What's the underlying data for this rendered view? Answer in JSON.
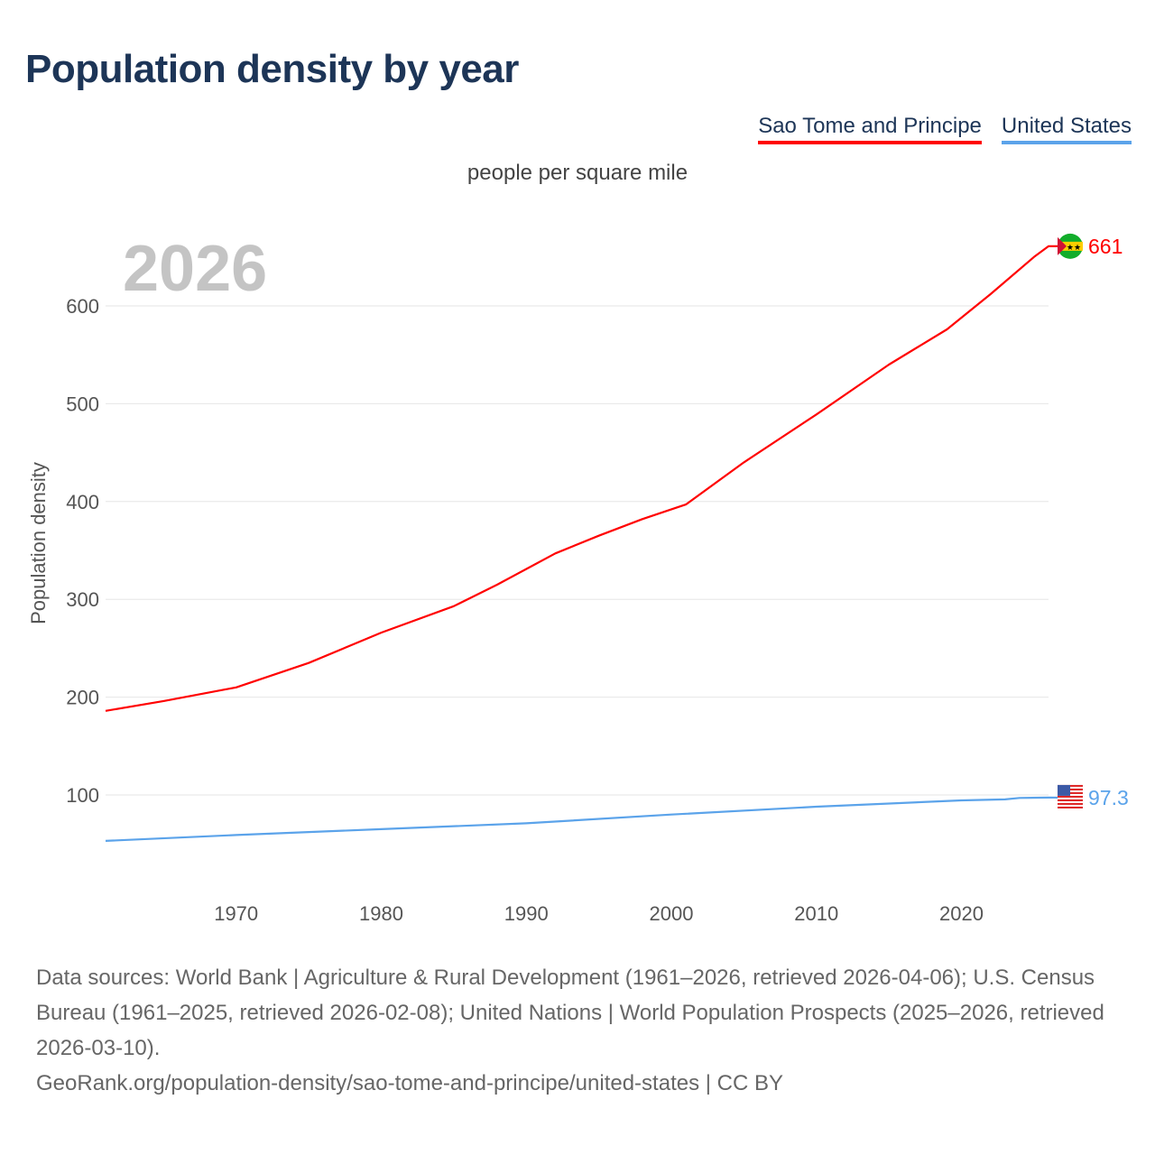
{
  "title": "Population density by year",
  "subtitle": "people per square mile",
  "year_label": "2026",
  "chart_data": {
    "type": "line",
    "ylabel": "Population density",
    "xlabel": "",
    "xlim": [
      1961,
      2026
    ],
    "ylim": [
      0,
      700
    ],
    "xticks": [
      1970,
      1980,
      1990,
      2000,
      2010,
      2020
    ],
    "yticks": [
      100,
      200,
      300,
      400,
      500,
      600
    ],
    "grid": true,
    "legend_position": "top-right",
    "series": [
      {
        "name": "Sao Tome and Principe",
        "color": "#ff0000",
        "end_label": "661",
        "x": [
          1961,
          1965,
          1970,
          1975,
          1980,
          1985,
          1988,
          1990,
          1992,
          1995,
          1998,
          2001,
          2005,
          2010,
          2015,
          2019,
          2022,
          2025,
          2026
        ],
        "y": [
          186,
          196,
          210,
          235,
          266,
          293,
          315,
          331,
          347,
          365,
          382,
          397,
          440,
          489,
          540,
          576,
          612,
          650,
          661
        ]
      },
      {
        "name": "United States",
        "color": "#5ba3ea",
        "end_label": "97.3",
        "x": [
          1961,
          1970,
          1980,
          1990,
          2000,
          2010,
          2020,
          2023,
          2024,
          2026
        ],
        "y": [
          53,
          59,
          65,
          71,
          80,
          88,
          94.5,
          95.5,
          97,
          97.3
        ]
      }
    ]
  },
  "footer": {
    "sources": "Data sources: World Bank | Agriculture & Rural Development (1961–2026, retrieved 2026-04-06); U.S. Census Bureau (1961–2025, retrieved 2026-02-08); United Nations | World Population Prospects (2025–2026, retrieved 2026-03-10).",
    "link": "GeoRank.org/population-density/sao-tome-and-principe/united-states | CC BY"
  }
}
